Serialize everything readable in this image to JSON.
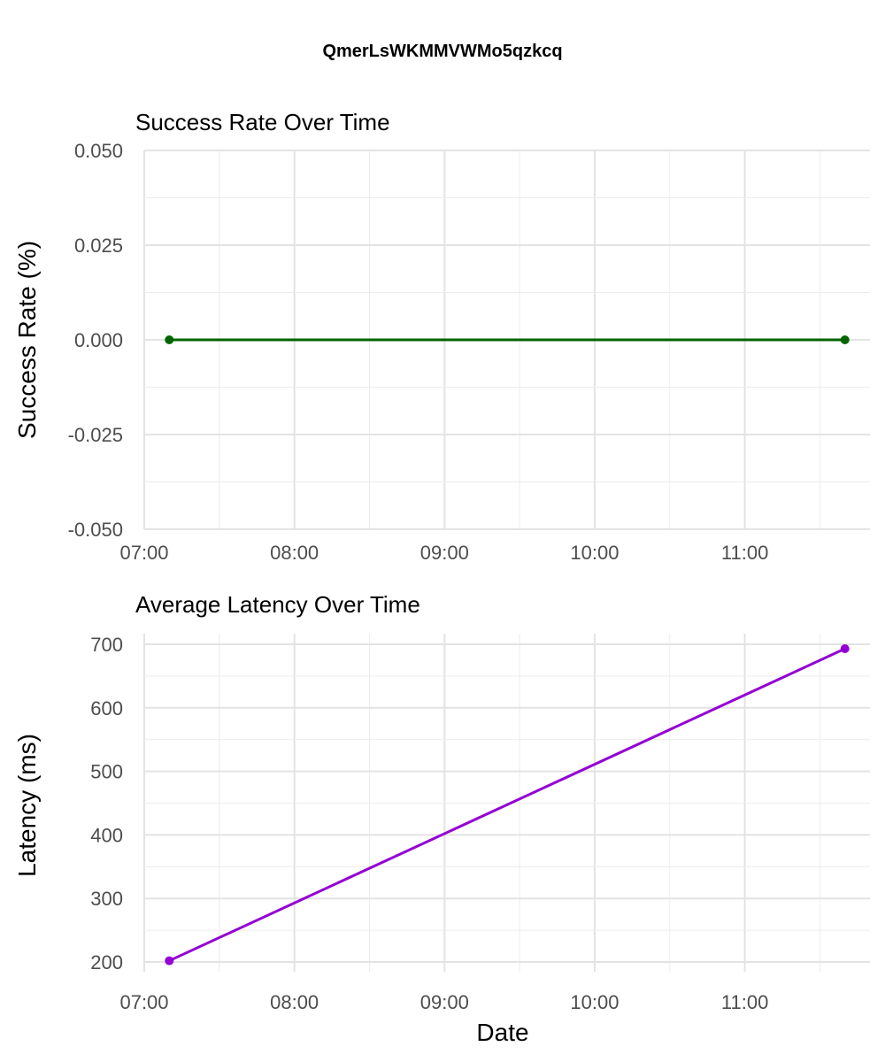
{
  "page_title": "QmerLsWKMMVWMo5qzkcq",
  "x_axis_title": "Date",
  "chart_data": [
    {
      "type": "line",
      "title": "Success Rate Over Time",
      "xlabel": "",
      "ylabel": "Success Rate (%)",
      "color": "#006400",
      "x": [
        "07:10",
        "11:40"
      ],
      "y": [
        0.0,
        0.0
      ],
      "xlim": [
        "07:00",
        "11:50"
      ],
      "ylim": [
        -0.05,
        0.05
      ],
      "xticks": [
        "07:00",
        "08:00",
        "09:00",
        "10:00",
        "11:00"
      ],
      "yticks": [
        "0.050",
        "0.025",
        "0.000",
        "-0.025",
        "-0.050"
      ],
      "grid": true
    },
    {
      "type": "line",
      "title": "Average Latency Over Time",
      "xlabel": "Date",
      "ylabel": "Latency (ms)",
      "color": "#9400D3",
      "x": [
        "07:10",
        "11:40"
      ],
      "y": [
        202,
        693
      ],
      "xlim": [
        "07:00",
        "11:50"
      ],
      "ylim": [
        200,
        700
      ],
      "xticks": [
        "07:00",
        "08:00",
        "09:00",
        "10:00",
        "11:00"
      ],
      "yticks": [
        "700",
        "600",
        "500",
        "400",
        "300",
        "200"
      ],
      "grid": true
    }
  ]
}
